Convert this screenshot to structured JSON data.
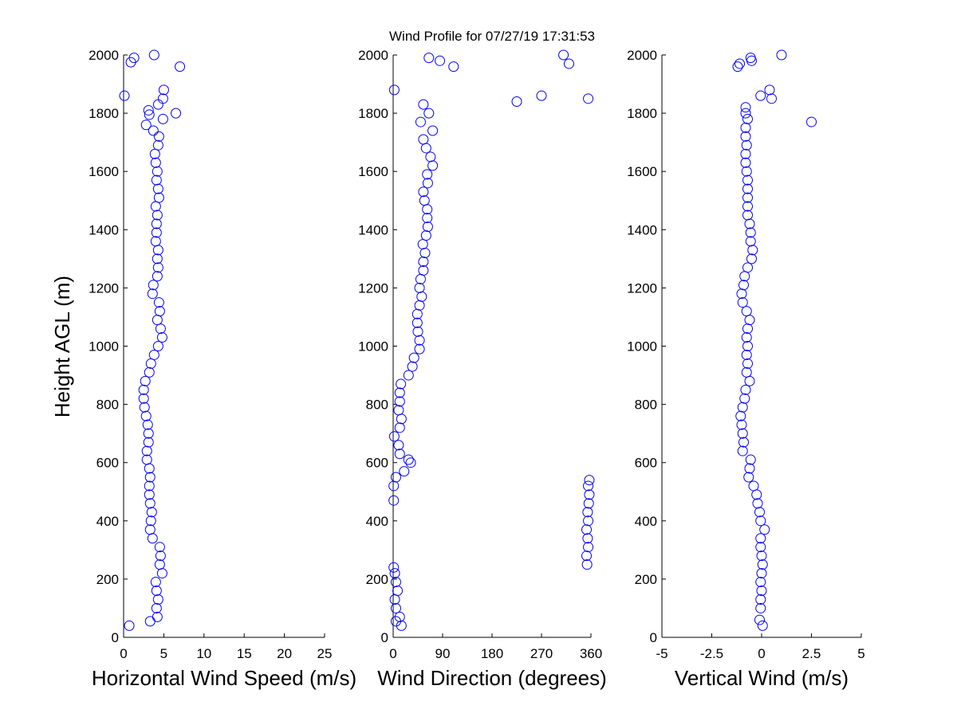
{
  "chart_data": [
    {
      "type": "scatter",
      "title": "Wind Profile for  07/27/19 17:31:53",
      "ylabel": "Height AGL (m)",
      "xlabel": "Horizontal Wind Speed (m/s)",
      "color": "#0000ff",
      "xlim": [
        0,
        25
      ],
      "xticks": [
        0,
        5,
        10,
        15,
        20,
        25
      ],
      "ylim": [
        0,
        2000
      ],
      "yticks": [
        0,
        200,
        400,
        600,
        800,
        1000,
        1200,
        1400,
        1600,
        1800,
        2000
      ],
      "x": [
        0.7,
        3.3,
        4.2,
        4.1,
        4.3,
        4.1,
        4.0,
        4.8,
        4.5,
        4.6,
        4.5,
        3.6,
        3.3,
        3.4,
        3.5,
        3.3,
        3.2,
        3.2,
        3.3,
        3.2,
        2.9,
        2.9,
        3.1,
        3.1,
        3.0,
        2.8,
        2.6,
        2.5,
        2.5,
        2.7,
        3.2,
        3.4,
        3.8,
        4.3,
        4.8,
        4.6,
        4.2,
        4.5,
        4.4,
        3.6,
        3.7,
        4.2,
        4.3,
        4.2,
        4.3,
        4.0,
        4.1,
        4.1,
        4.2,
        4.0,
        4.4,
        4.3,
        4.1,
        4.2,
        4.0,
        3.9,
        4.3,
        4.4,
        3.7,
        2.8,
        4.9,
        3.2,
        6.5,
        3.1,
        4.3,
        4.9,
        0.1,
        5.0,
        7.0,
        0.9,
        1.3,
        3.8
      ],
      "y": [
        40,
        55,
        70,
        100,
        130,
        160,
        190,
        220,
        250,
        280,
        310,
        340,
        370,
        400,
        430,
        460,
        490,
        520,
        550,
        580,
        610,
        640,
        670,
        700,
        730,
        760,
        790,
        820,
        850,
        880,
        910,
        940,
        970,
        1000,
        1030,
        1060,
        1090,
        1120,
        1150,
        1180,
        1210,
        1240,
        1270,
        1300,
        1330,
        1360,
        1390,
        1420,
        1450,
        1480,
        1510,
        1540,
        1570,
        1600,
        1630,
        1660,
        1690,
        1720,
        1740,
        1760,
        1780,
        1795,
        1800,
        1810,
        1830,
        1850,
        1860,
        1880,
        1960,
        1975,
        1990,
        2000
      ]
    },
    {
      "type": "scatter",
      "xlabel": "Wind Direction (degrees)",
      "color": "#0000ff",
      "xlim": [
        0,
        360
      ],
      "xticks": [
        0,
        90,
        180,
        270,
        360
      ],
      "ylim": [
        0,
        2000
      ],
      "yticks": [
        0,
        200,
        400,
        600,
        800,
        1000,
        1200,
        1400,
        1600,
        1800,
        2000
      ],
      "x": [
        15,
        5,
        12,
        5,
        3,
        8,
        5,
        3,
        1,
        353,
        352,
        355,
        354,
        352,
        355,
        354,
        356,
        1,
        357,
        355,
        1,
        357,
        5,
        20,
        32,
        28,
        12,
        10,
        2,
        12,
        15,
        10,
        12,
        12,
        14,
        28,
        35,
        38,
        48,
        48,
        45,
        44,
        44,
        48,
        52,
        48,
        50,
        55,
        55,
        58,
        54,
        60,
        63,
        62,
        62,
        57,
        55,
        63,
        62,
        72,
        68,
        60,
        55,
        72,
        50,
        65,
        55,
        225,
        355,
        270,
        2,
        110,
        320,
        85,
        65,
        310
      ],
      "y": [
        40,
        55,
        70,
        100,
        130,
        160,
        190,
        220,
        240,
        250,
        280,
        310,
        340,
        370,
        400,
        430,
        460,
        470,
        490,
        520,
        520,
        540,
        550,
        570,
        600,
        610,
        630,
        660,
        690,
        720,
        750,
        780,
        810,
        840,
        870,
        900,
        930,
        960,
        990,
        1020,
        1050,
        1080,
        1110,
        1140,
        1170,
        1200,
        1230,
        1260,
        1290,
        1320,
        1350,
        1380,
        1410,
        1440,
        1470,
        1500,
        1530,
        1560,
        1590,
        1620,
        1650,
        1680,
        1710,
        1740,
        1770,
        1800,
        1830,
        1840,
        1850,
        1860,
        1880,
        1960,
        1970,
        1980,
        1990,
        2000
      ]
    },
    {
      "type": "scatter",
      "xlabel": "Vertical Wind (m/s)",
      "color": "#0000ff",
      "xlim": [
        -5,
        5
      ],
      "xticks": [
        -5,
        -2.5,
        0,
        2.5,
        5
      ],
      "ylim": [
        0,
        2000
      ],
      "yticks": [
        0,
        200,
        400,
        600,
        800,
        1000,
        1200,
        1400,
        1600,
        1800,
        2000
      ],
      "x": [
        0.05,
        -0.1,
        -0.05,
        -0.05,
        0,
        -0.05,
        0,
        0.05,
        0,
        -0.05,
        -0.05,
        0.15,
        -0.05,
        -0.1,
        -0.2,
        -0.25,
        -0.4,
        -0.65,
        -0.6,
        -0.55,
        -0.95,
        -0.9,
        -0.95,
        -1.0,
        -1.05,
        -0.95,
        -0.85,
        -0.8,
        -0.6,
        -0.75,
        -0.7,
        -0.75,
        -0.7,
        -0.75,
        -0.7,
        -0.6,
        -0.75,
        -0.95,
        -1.0,
        -0.9,
        -0.85,
        -0.7,
        -0.5,
        -0.45,
        -0.55,
        -0.55,
        -0.6,
        -0.7,
        -0.7,
        -0.7,
        -0.7,
        -0.7,
        -0.75,
        -0.8,
        -0.8,
        -0.75,
        -0.8,
        -0.8,
        2.5,
        -0.7,
        -0.8,
        -0.8,
        0.5,
        -0.05,
        0.4,
        -1.2,
        -1.1,
        -0.5,
        -0.55,
        1.0
      ],
      "y": [
        40,
        60,
        100,
        130,
        160,
        190,
        220,
        250,
        280,
        310,
        340,
        370,
        400,
        430,
        460,
        490,
        520,
        550,
        580,
        610,
        640,
        670,
        700,
        730,
        760,
        790,
        820,
        850,
        880,
        910,
        940,
        970,
        1000,
        1030,
        1060,
        1090,
        1120,
        1150,
        1180,
        1210,
        1240,
        1270,
        1300,
        1330,
        1360,
        1390,
        1420,
        1450,
        1480,
        1510,
        1540,
        1570,
        1600,
        1630,
        1660,
        1690,
        1720,
        1750,
        1770,
        1780,
        1800,
        1820,
        1850,
        1860,
        1880,
        1960,
        1970,
        1980,
        1990,
        2000
      ]
    }
  ]
}
